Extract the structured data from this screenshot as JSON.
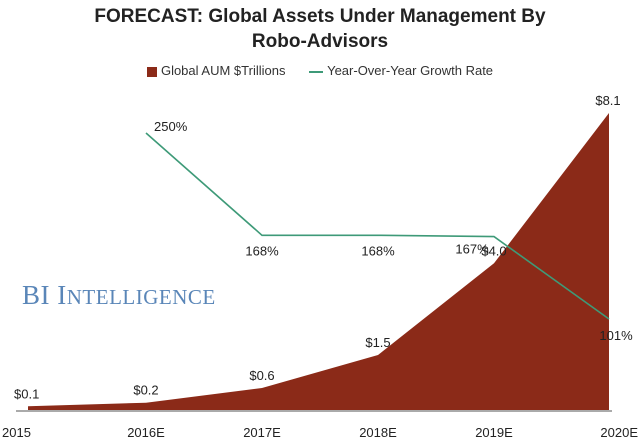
{
  "chart_data": {
    "type": "area",
    "title_line1": "FORECAST: Global Assets Under Management By",
    "title_line2": "Robo-Advisors",
    "categories": [
      "2015",
      "2016E",
      "2017E",
      "2018E",
      "2019E",
      "2020E"
    ],
    "series": [
      {
        "name": "Global AUM $Trillions",
        "kind": "area",
        "color": "#8B2A18",
        "values": [
          0.1,
          0.2,
          0.6,
          1.5,
          4.0,
          8.1
        ],
        "labels": [
          "$0.1",
          "$0.2",
          "$0.6",
          "$1.5",
          "$4.0",
          "$8.1"
        ]
      },
      {
        "name": "Year-Over-Year Growth Rate",
        "kind": "line",
        "color": "#3E9A78",
        "values": [
          null,
          250,
          168,
          168,
          167,
          101
        ],
        "labels": [
          "",
          "250%",
          "168%",
          "168%",
          "167%",
          "101%"
        ]
      }
    ],
    "y_left_range": [
      0,
      8.1
    ],
    "y_right_range": [
      0,
      250
    ],
    "legend_position": "top-center",
    "grid": false
  },
  "watermark": {
    "first_word": "BI",
    "second_initial": "I",
    "second_rest": "NTELLIGENCE"
  }
}
